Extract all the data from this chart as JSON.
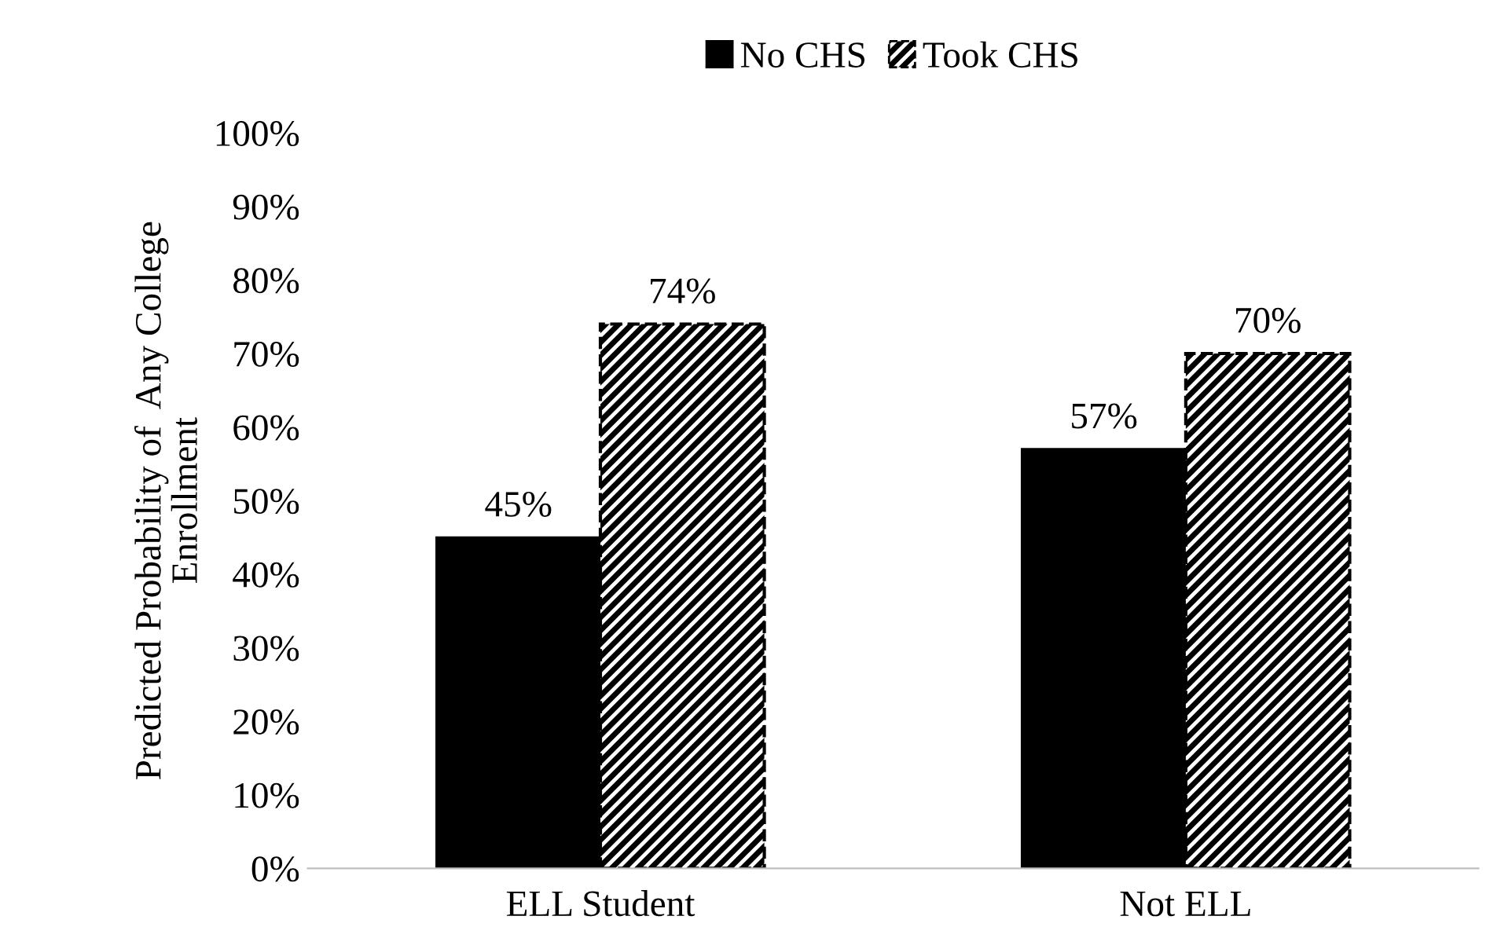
{
  "chart_data": {
    "type": "bar",
    "ylabel": "Predicted Probability of  Any College\nEnrollment",
    "categories": [
      "ELL Student",
      "Not ELL"
    ],
    "series": [
      {
        "name": "No CHS",
        "color": "#000000",
        "values": [
          45,
          57
        ],
        "value_labels": [
          "45%",
          "57%"
        ]
      },
      {
        "name": "Took CHS",
        "color": "#000000",
        "values": [
          74,
          70
        ],
        "value_labels": [
          "74%",
          "70%"
        ]
      }
    ],
    "ylim": [
      0,
      100
    ],
    "yticks": [
      {
        "value": 0,
        "label": "0%"
      },
      {
        "value": 10,
        "label": "10%"
      },
      {
        "value": 20,
        "label": "20%"
      },
      {
        "value": 30,
        "label": "30%"
      },
      {
        "value": 40,
        "label": "40%"
      },
      {
        "value": 50,
        "label": "50%"
      },
      {
        "value": 60,
        "label": "60%"
      },
      {
        "value": 70,
        "label": "70%"
      },
      {
        "value": 80,
        "label": "80%"
      },
      {
        "value": 90,
        "label": "90%"
      },
      {
        "value": 100,
        "label": "100%"
      }
    ],
    "grid": false,
    "legend": "top"
  }
}
